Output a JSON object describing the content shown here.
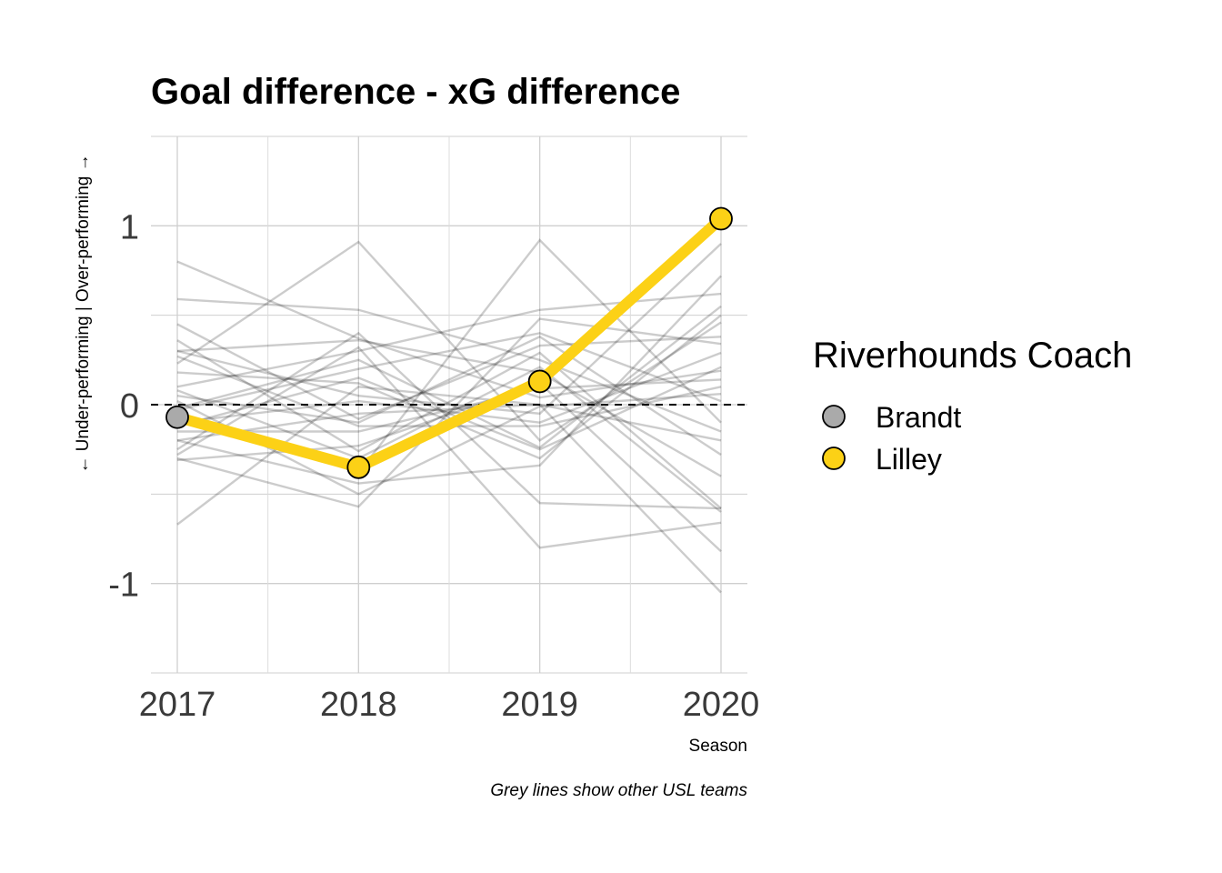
{
  "chart_data": {
    "type": "line",
    "title": "Goal difference - xG difference",
    "xlabel": "Season",
    "ylabel": "← Under-performing  |  Over-performing →",
    "caption": "Grey lines show other USL teams",
    "x": [
      "2017",
      "2018",
      "2019",
      "2020"
    ],
    "ylim": [
      -1.5,
      1.5
    ],
    "yticks": [
      -1,
      0,
      1
    ],
    "ytick_labels": [
      "-1",
      "0",
      "1"
    ],
    "reference_line": 0,
    "grid": true,
    "legend": {
      "title": "Riverhounds Coach",
      "placement": "right",
      "entries": [
        {
          "label": "Brandt",
          "color": "#aaaaaa"
        },
        {
          "label": "Lilley",
          "color": "#fcd116"
        }
      ]
    },
    "highlight_series": {
      "color": "#fcd116",
      "values": [
        -0.07,
        -0.35,
        0.13,
        1.04
      ],
      "point_coach": [
        "Brandt",
        "Lilley",
        "Lilley",
        "Lilley"
      ]
    },
    "other_teams_color": "#000000",
    "other_teams": [
      [
        0.8,
        0.37,
        0.04,
        0.19
      ],
      [
        0.59,
        0.53,
        0.25,
        -0.15
      ],
      [
        0.45,
        -0.08,
        0.33,
        0.38
      ],
      [
        0.3,
        0.36,
        0.18,
        -0.4
      ],
      [
        0.3,
        0.05,
        -0.05,
        0.9
      ],
      [
        0.23,
        0.91,
        -0.2,
        0.46
      ],
      [
        0.1,
        0.3,
        0.53,
        0.62
      ],
      [
        0.05,
        -0.1,
        0.38,
        -0.28
      ],
      [
        -0.02,
        0.25,
        -0.24,
        0.55
      ],
      [
        -0.05,
        -0.38,
        0.92,
        -0.1
      ],
      [
        -0.1,
        0.02,
        -0.1,
        0.29
      ],
      [
        -0.15,
        -0.15,
        0.09,
        0.14
      ],
      [
        -0.2,
        -0.44,
        -0.34,
        0.72
      ],
      [
        -0.25,
        0.4,
        -0.55,
        -0.58
      ],
      [
        -0.28,
        0.32,
        -0.8,
        -0.66
      ],
      [
        -0.3,
        -0.57,
        0.48,
        0.34
      ],
      [
        -0.31,
        -0.23,
        0.12,
        -0.82
      ],
      [
        -0.67,
        0.1,
        0.0,
        -1.05
      ],
      [
        0.02,
        -0.5,
        -0.01,
        0.06
      ],
      [
        -0.12,
        0.15,
        -0.25,
        0.21
      ],
      [
        0.36,
        -0.26,
        0.29,
        -0.58
      ],
      [
        -0.2,
        -0.05,
        0.0,
        -0.2
      ],
      [
        0.18,
        0.12,
        -0.3,
        0.5
      ],
      [
        0.08,
        -0.3,
        0.21,
        -0.6
      ],
      [
        -0.03,
        0.2,
        0.4,
        0.02
      ],
      [
        0.27,
        -0.12,
        -0.12,
        0.1
      ]
    ]
  }
}
